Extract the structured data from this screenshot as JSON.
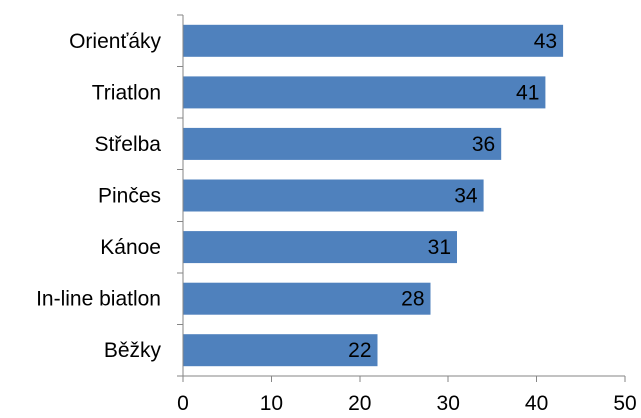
{
  "chart_data": {
    "type": "bar",
    "orientation": "horizontal",
    "title": "",
    "xlabel": "",
    "ylabel": "",
    "categories": [
      "Orienťáky",
      "Triatlon",
      "Střelba",
      "Pinčes",
      "Kánoe",
      "In-line biatlon",
      "Běžky"
    ],
    "values": [
      43,
      41,
      36,
      34,
      31,
      28,
      22
    ],
    "xlim": [
      0,
      50
    ],
    "x_ticks": [
      "0",
      "10",
      "20",
      "30",
      "40",
      "50"
    ],
    "grid": false,
    "legend": "none",
    "data_labels": true,
    "colors": {
      "bar": "#4f81bd",
      "axis": "#868686",
      "text": "#000000"
    }
  }
}
